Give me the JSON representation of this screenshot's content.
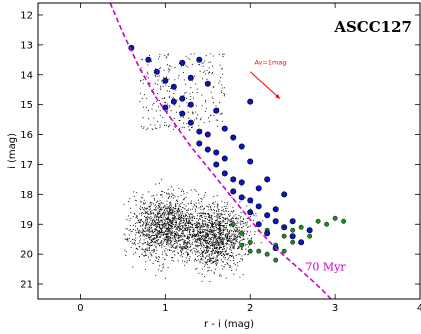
{
  "chart_data": {
    "type": "scatter",
    "title": "ASCC127",
    "xlabel": "r - i (mag)",
    "ylabel": "i (mag)",
    "xlim": [
      -0.5,
      4
    ],
    "ylim": [
      21.5,
      11.6
    ],
    "y_inverted": true,
    "xticks": [
      "0",
      "1",
      "2",
      "3",
      "4"
    ],
    "xtick_values": [
      0,
      1,
      2,
      3,
      4
    ],
    "yticks": [
      "12",
      "13",
      "14",
      "15",
      "16",
      "17",
      "18",
      "19",
      "20",
      "21"
    ],
    "ytick_values": [
      12,
      13,
      14,
      15,
      16,
      17,
      18,
      19,
      20,
      21
    ],
    "grid": false,
    "colors": {
      "field": "#000000",
      "members": "#0a14c8",
      "faint_members": "#1f8a1f",
      "isochrone": "#cc00cc",
      "reddening": "#ff0000"
    },
    "series": [
      {
        "role": "field",
        "marker": "dot",
        "cloud_centers": [
          [
            1.0,
            19.1
          ],
          [
            1.6,
            19.4
          ]
        ],
        "x_range": [
          0.5,
          2.6
        ],
        "y_range": [
          14.9,
          21.2
        ]
      },
      {
        "role": "faint_members",
        "marker": "circle",
        "points": [
          [
            1.8,
            19.0
          ],
          [
            1.9,
            19.3
          ],
          [
            2.0,
            19.6
          ],
          [
            2.1,
            19.9
          ],
          [
            2.2,
            20.0
          ],
          [
            2.3,
            19.7
          ],
          [
            2.4,
            19.4
          ],
          [
            2.5,
            19.6
          ],
          [
            2.7,
            19.4
          ],
          [
            2.9,
            19.0
          ],
          [
            3.0,
            18.8
          ],
          [
            3.1,
            18.9
          ],
          [
            2.6,
            19.1
          ],
          [
            2.8,
            18.9
          ],
          [
            2.2,
            19.2
          ],
          [
            2.0,
            19.9
          ],
          [
            2.3,
            20.2
          ],
          [
            1.9,
            19.7
          ],
          [
            2.5,
            19.2
          ],
          [
            2.4,
            19.9
          ]
        ]
      },
      {
        "role": "members",
        "marker": "circle",
        "points": [
          [
            0.6,
            13.1
          ],
          [
            0.8,
            13.5
          ],
          [
            0.9,
            13.9
          ],
          [
            1.0,
            14.2
          ],
          [
            1.1,
            14.4
          ],
          [
            1.2,
            14.8
          ],
          [
            1.3,
            15.0
          ],
          [
            1.2,
            15.3
          ],
          [
            1.3,
            15.6
          ],
          [
            1.4,
            15.9
          ],
          [
            1.5,
            16.0
          ],
          [
            1.4,
            16.3
          ],
          [
            1.5,
            16.5
          ],
          [
            1.6,
            16.6
          ],
          [
            1.7,
            16.8
          ],
          [
            1.6,
            17.0
          ],
          [
            1.7,
            17.3
          ],
          [
            1.8,
            17.5
          ],
          [
            1.9,
            17.6
          ],
          [
            1.8,
            17.9
          ],
          [
            1.9,
            18.1
          ],
          [
            2.0,
            18.2
          ],
          [
            2.1,
            18.4
          ],
          [
            2.0,
            18.6
          ],
          [
            2.2,
            18.7
          ],
          [
            2.3,
            18.9
          ],
          [
            2.1,
            19.0
          ],
          [
            2.4,
            19.1
          ],
          [
            2.2,
            19.3
          ],
          [
            2.5,
            19.4
          ],
          [
            2.6,
            19.6
          ],
          [
            2.3,
            19.8
          ],
          [
            1.2,
            13.6
          ],
          [
            1.4,
            13.5
          ],
          [
            1.5,
            14.3
          ],
          [
            1.6,
            15.2
          ],
          [
            1.8,
            16.1
          ],
          [
            2.0,
            16.9
          ],
          [
            2.2,
            17.5
          ],
          [
            2.4,
            18.0
          ],
          [
            2.3,
            18.5
          ],
          [
            2.1,
            17.8
          ],
          [
            1.9,
            16.4
          ],
          [
            1.7,
            15.8
          ],
          [
            1.3,
            14.1
          ],
          [
            1.0,
            15.1
          ],
          [
            1.1,
            14.9
          ],
          [
            2.5,
            18.9
          ],
          [
            2.7,
            19.2
          ],
          [
            2.0,
            14.9
          ]
        ]
      },
      {
        "role": "isochrone",
        "name": "70 Myr",
        "marker": "dashed-line",
        "points": [
          [
            0.35,
            11.6
          ],
          [
            0.5,
            12.6
          ],
          [
            0.7,
            13.8
          ],
          [
            0.9,
            14.8
          ],
          [
            1.1,
            15.6
          ],
          [
            1.3,
            16.4
          ],
          [
            1.5,
            17.1
          ],
          [
            1.7,
            17.8
          ],
          [
            1.9,
            18.5
          ],
          [
            2.1,
            19.2
          ],
          [
            2.3,
            19.8
          ],
          [
            2.5,
            20.3
          ],
          [
            2.7,
            20.8
          ],
          [
            2.85,
            21.2
          ],
          [
            2.95,
            21.5
          ]
        ]
      }
    ],
    "annotations": [
      {
        "text": "70 Myr",
        "x": 2.65,
        "y": 20.55,
        "color": "isochrone"
      },
      {
        "text": "Av=1mag",
        "x": 2.05,
        "y": 13.65,
        "color": "reddening"
      }
    ],
    "reddening_vector": {
      "from": [
        2.0,
        13.9
      ],
      "to": [
        2.35,
        14.8
      ],
      "label": "Av=1mag"
    }
  }
}
